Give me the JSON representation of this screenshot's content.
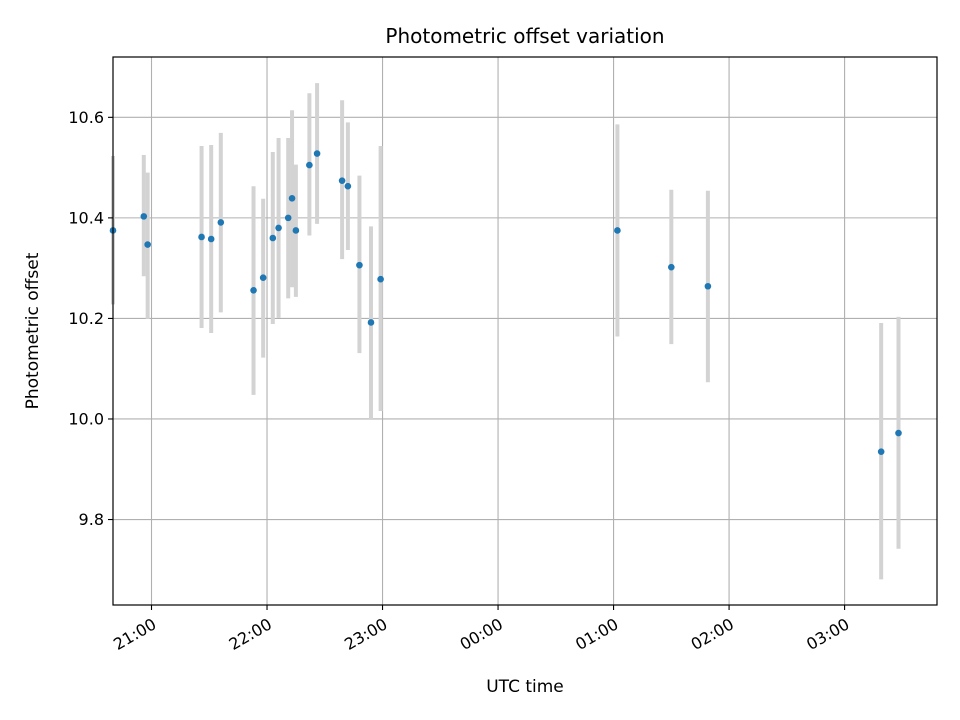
{
  "chart_data": {
    "type": "scatter",
    "title": "Photometric offset variation",
    "xlabel": "UTC time",
    "ylabel": "Photometric offset",
    "grid": true,
    "xlim": [
      "20:40",
      "03:48"
    ],
    "ylim": [
      9.63,
      10.72
    ],
    "x_ticks": [
      "21:00",
      "22:00",
      "23:00",
      "00:00",
      "01:00",
      "02:00",
      "03:00"
    ],
    "y_ticks": [
      9.8,
      10.0,
      10.2,
      10.4,
      10.6
    ],
    "y_tick_labels": [
      "9.8",
      "10.0",
      "10.2",
      "10.4",
      "10.6"
    ],
    "colors": {
      "points": "#1f77b4",
      "errorbars": "#d3d3d3",
      "grid": "#b0b0b0"
    },
    "points": [
      {
        "x": "20:40",
        "y": 10.375,
        "yerr_low": 10.228,
        "yerr_high": 10.523
      },
      {
        "x": "20:56",
        "y": 10.403,
        "yerr_low": 10.284,
        "yerr_high": 10.525
      },
      {
        "x": "20:58",
        "y": 10.347,
        "yerr_low": 10.199,
        "yerr_high": 10.49
      },
      {
        "x": "21:26",
        "y": 10.362,
        "yerr_low": 10.181,
        "yerr_high": 10.543
      },
      {
        "x": "21:31",
        "y": 10.358,
        "yerr_low": 10.171,
        "yerr_high": 10.545
      },
      {
        "x": "21:36",
        "y": 10.391,
        "yerr_low": 10.212,
        "yerr_high": 10.569
      },
      {
        "x": "21:53",
        "y": 10.256,
        "yerr_low": 10.048,
        "yerr_high": 10.463
      },
      {
        "x": "21:58",
        "y": 10.281,
        "yerr_low": 10.122,
        "yerr_high": 10.438
      },
      {
        "x": "22:03",
        "y": 10.36,
        "yerr_low": 10.189,
        "yerr_high": 10.531
      },
      {
        "x": "22:06",
        "y": 10.38,
        "yerr_low": 10.201,
        "yerr_high": 10.559
      },
      {
        "x": "22:11",
        "y": 10.4,
        "yerr_low": 10.24,
        "yerr_high": 10.559
      },
      {
        "x": "22:13",
        "y": 10.439,
        "yerr_low": 10.262,
        "yerr_high": 10.614
      },
      {
        "x": "22:15",
        "y": 10.375,
        "yerr_low": 10.243,
        "yerr_high": 10.506
      },
      {
        "x": "22:22",
        "y": 10.505,
        "yerr_low": 10.365,
        "yerr_high": 10.648
      },
      {
        "x": "22:26",
        "y": 10.528,
        "yerr_low": 10.388,
        "yerr_high": 10.668
      },
      {
        "x": "22:39",
        "y": 10.474,
        "yerr_low": 10.318,
        "yerr_high": 10.634
      },
      {
        "x": "22:42",
        "y": 10.463,
        "yerr_low": 10.336,
        "yerr_high": 10.59
      },
      {
        "x": "22:48",
        "y": 10.306,
        "yerr_low": 10.131,
        "yerr_high": 10.484
      },
      {
        "x": "22:54",
        "y": 10.192,
        "yerr_low": 10.0,
        "yerr_high": 10.383
      },
      {
        "x": "22:59",
        "y": 10.278,
        "yerr_low": 10.016,
        "yerr_high": 10.543
      },
      {
        "x": "01:02",
        "y": 10.375,
        "yerr_low": 10.164,
        "yerr_high": 10.586
      },
      {
        "x": "01:30",
        "y": 10.302,
        "yerr_low": 10.149,
        "yerr_high": 10.456
      },
      {
        "x": "01:49",
        "y": 10.264,
        "yerr_low": 10.073,
        "yerr_high": 10.454
      },
      {
        "x": "03:19",
        "y": 9.935,
        "yerr_low": 9.681,
        "yerr_high": 10.191
      },
      {
        "x": "03:28",
        "y": 9.972,
        "yerr_low": 9.742,
        "yerr_high": 10.203
      }
    ]
  }
}
